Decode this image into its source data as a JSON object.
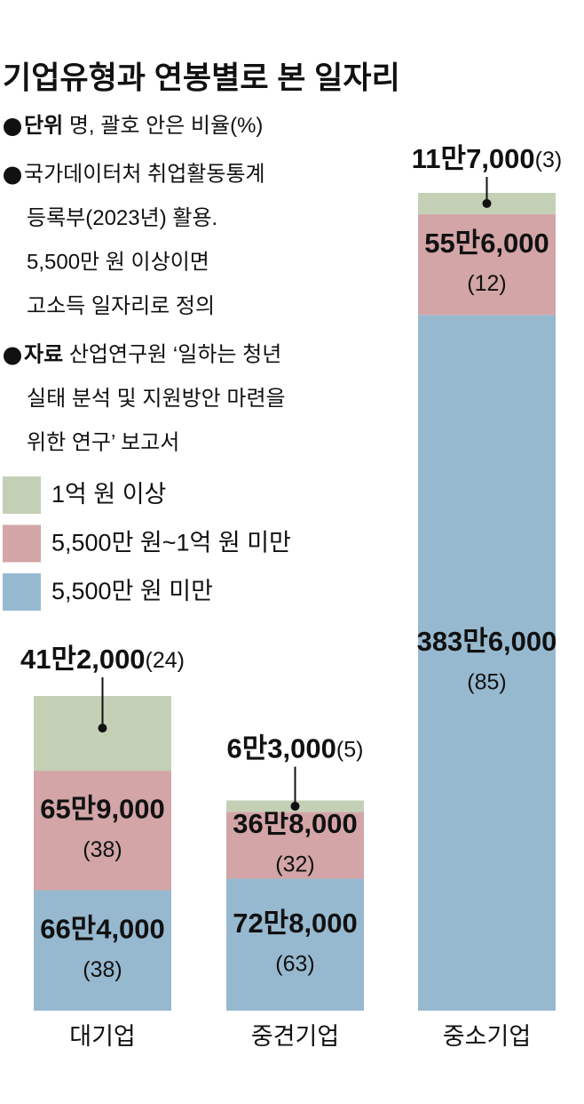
{
  "chart_data": {
    "type": "bar",
    "stacked": true,
    "title": "기업유형과 연봉별로 본 일자리",
    "notes": [
      {
        "label": "단위",
        "lines": [
          "명, 괄호 안은 비율(%)"
        ]
      },
      {
        "lines": [
          "국가데이터처 취업활동통계",
          "등록부(2023년) 활용.",
          "5,500만 원 이상이면",
          "고소득 일자리로 정의"
        ]
      },
      {
        "label": "자료",
        "lines": [
          "산업연구원 ‘일하는 청년",
          "실태 분석 및 지원방안 마련을",
          "위한 연구’ 보고서"
        ]
      }
    ],
    "categories": [
      "대기업",
      "중견기업",
      "중소기업"
    ],
    "series": [
      {
        "name": "5,500만 원 미만",
        "color": "#97b9d0",
        "values": [
          664000,
          728000,
          3836000
        ],
        "value_labels": [
          "66만4,000",
          "72만8,000",
          "383만6,000"
        ],
        "shares": [
          38,
          63,
          85
        ],
        "share_labels": [
          "(38)",
          "(63)",
          "(85)"
        ]
      },
      {
        "name": "5,500만 원~1억 원 미만",
        "color": "#d3a5a7",
        "values": [
          659000,
          368000,
          556000
        ],
        "value_labels": [
          "65만9,000",
          "36만8,000",
          "55만6,000"
        ],
        "shares": [
          38,
          32,
          12
        ],
        "share_labels": [
          "(38)",
          "(32)",
          "(12)"
        ]
      },
      {
        "name": "1억 원 이상",
        "color": "#c4d0b6",
        "values": [
          412000,
          63000,
          117000
        ],
        "value_labels": [
          "41만2,000",
          "6만3,000",
          "11만7,000"
        ],
        "shares": [
          24,
          5,
          3
        ],
        "share_labels": [
          "(24)",
          "(5)",
          "(3)"
        ]
      }
    ]
  }
}
